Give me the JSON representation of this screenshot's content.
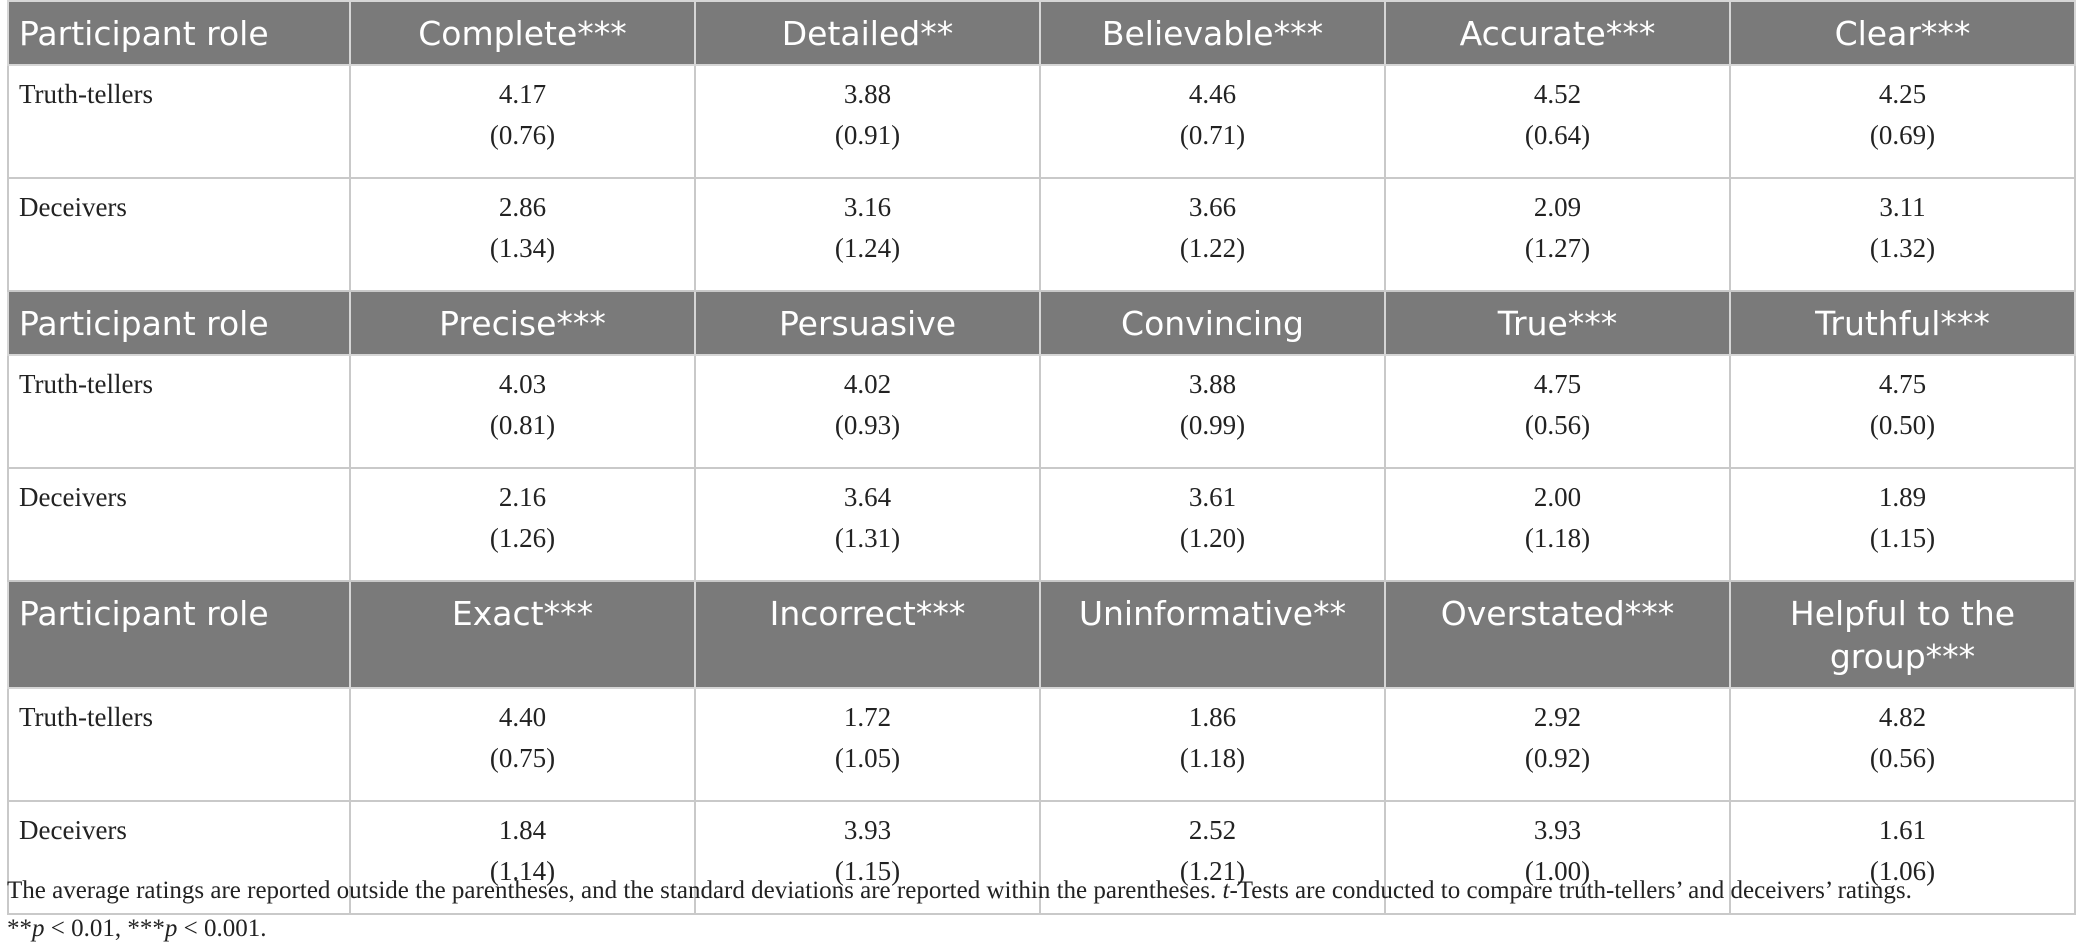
{
  "blocks": [
    {
      "headers": [
        "Participant role",
        "Complete***",
        "Detailed**",
        "Believable***",
        "Accurate***",
        "Clear***"
      ],
      "rows": [
        {
          "role": "Truth-tellers",
          "means": [
            "4.17",
            "3.88",
            "4.46",
            "4.52",
            "4.25"
          ],
          "sds": [
            "(0.76)",
            "(0.91)",
            "(0.71)",
            "(0.64)",
            "(0.69)"
          ]
        },
        {
          "role": "Deceivers",
          "means": [
            "2.86",
            "3.16",
            "3.66",
            "2.09",
            "3.11"
          ],
          "sds": [
            "(1.34)",
            "(1.24)",
            "(1.22)",
            "(1.27)",
            "(1.32)"
          ]
        }
      ]
    },
    {
      "headers": [
        "Participant role",
        "Precise***",
        "Persuasive",
        "Convincing",
        "True***",
        "Truthful***"
      ],
      "rows": [
        {
          "role": "Truth-tellers",
          "means": [
            "4.03",
            "4.02",
            "3.88",
            "4.75",
            "4.75"
          ],
          "sds": [
            "(0.81)",
            "(0.93)",
            "(0.99)",
            "(0.56)",
            "(0.50)"
          ]
        },
        {
          "role": "Deceivers",
          "means": [
            "2.16",
            "3.64",
            "3.61",
            "2.00",
            "1.89"
          ],
          "sds": [
            "(1.26)",
            "(1.31)",
            "(1.20)",
            "(1.18)",
            "(1.15)"
          ]
        }
      ]
    },
    {
      "headers": [
        "Participant role",
        "Exact***",
        "Incorrect***",
        "Uninformative**",
        "Overstated***",
        "Helpful to the group***"
      ],
      "rows": [
        {
          "role": "Truth-tellers",
          "means": [
            "4.40",
            "1.72",
            "1.86",
            "2.92",
            "4.82"
          ],
          "sds": [
            "(0.75)",
            "(1.05)",
            "(1.18)",
            "(0.92)",
            "(0.56)"
          ]
        },
        {
          "role": "Deceivers",
          "means": [
            "1.84",
            "3.93",
            "2.52",
            "3.93",
            "1.61"
          ],
          "sds": [
            "(1.14)",
            "(1.15)",
            "(1.21)",
            "(1.00)",
            "(1.06)"
          ]
        }
      ]
    }
  ],
  "note": {
    "line1_a": "The average ratings are reported outside the parentheses, and the standard deviations are reported within the parentheses. ",
    "t_italic": "t",
    "line1_b": "-Tests are conducted to compare truth-tellers’ and deceivers’ ratings.",
    "sig1_stars": "**",
    "sig_p": "p",
    "sig1_rest": " < 0.01, ",
    "sig2_stars": "***",
    "sig2_rest": " < 0.001."
  }
}
